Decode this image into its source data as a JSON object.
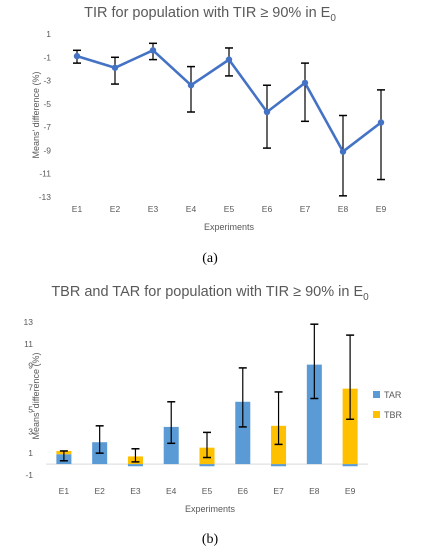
{
  "chart_data": [
    {
      "type": "line",
      "title": "TIR for population with TIR ≥ 90% in E",
      "title_subscript": "0",
      "xlabel": "Experiments",
      "ylabel": "Means' difference (%)",
      "ylim": [
        -13,
        1
      ],
      "yticks": [
        1,
        -1,
        -3,
        -5,
        -7,
        -9,
        -11,
        -13
      ],
      "grid": false,
      "categories": [
        "E1",
        "E2",
        "E3",
        "E4",
        "E5",
        "E6",
        "E7",
        "E8",
        "E9"
      ],
      "series": [
        {
          "color": "#4472c4",
          "values": [
            -0.9,
            -1.9,
            -0.4,
            -3.4,
            -1.2,
            -5.7,
            -3.2,
            -9.1,
            -6.6
          ],
          "error_low": [
            -1.5,
            -3.3,
            -1.2,
            -5.7,
            -2.6,
            -8.8,
            -6.5,
            -12.9,
            -11.5
          ],
          "error_high": [
            -0.4,
            -1.0,
            0.2,
            -1.8,
            -0.2,
            -3.4,
            -1.5,
            -6.0,
            -3.8
          ]
        }
      ],
      "caption": "(a)"
    },
    {
      "type": "bar",
      "stacked": true,
      "title": "TBR and TAR for population with TIR ≥ 90% in E",
      "title_subscript": "0",
      "xlabel": "Experiments",
      "ylabel": "Means' difference (%)",
      "ylim": [
        -1,
        13
      ],
      "yticks": [
        13,
        11,
        9,
        7,
        5,
        3,
        1,
        -1
      ],
      "grid": false,
      "legend": "right",
      "categories": [
        "E1",
        "E2",
        "E3",
        "E4",
        "E5",
        "E6",
        "E7",
        "E8",
        "E9"
      ],
      "series": [
        {
          "name": "TAR",
          "color": "#5b9bd5",
          "values": [
            0.9,
            2.0,
            -0.2,
            3.4,
            -0.2,
            5.7,
            -0.2,
            9.1,
            -0.2
          ]
        },
        {
          "name": "TBR",
          "color": "#ffc000",
          "values": [
            0.3,
            0.0,
            0.7,
            0.0,
            1.5,
            0.0,
            3.5,
            0.0,
            6.9
          ]
        }
      ],
      "error_bars": [
        {
          "center": 0.7,
          "low": 0.3,
          "high": 1.2
        },
        {
          "center": 2.0,
          "low": 1.0,
          "high": 3.5
        },
        {
          "center": 0.7,
          "low": 0.2,
          "high": 1.4
        },
        {
          "center": 3.4,
          "low": 1.9,
          "high": 5.7
        },
        {
          "center": 1.5,
          "low": 0.6,
          "high": 2.9
        },
        {
          "center": 5.7,
          "low": 3.4,
          "high": 8.8
        },
        {
          "center": 3.5,
          "low": 1.8,
          "high": 6.6
        },
        {
          "center": 9.1,
          "low": 6.0,
          "high": 12.8
        },
        {
          "center": 6.9,
          "low": 4.1,
          "high": 11.8
        }
      ],
      "caption": "(b)"
    }
  ]
}
